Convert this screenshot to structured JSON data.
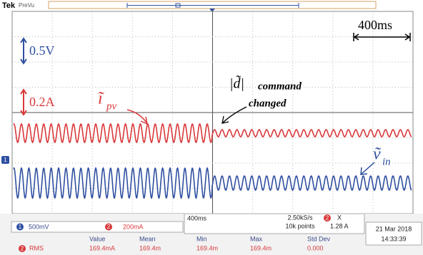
{
  "header": {
    "brand": "Tek",
    "mode": "PreVu"
  },
  "annotations": {
    "time_scale": "400ms",
    "voltage_scale": "0.5V",
    "current_scale": "0.2A",
    "ipv_symbol": "ĩ",
    "ipv_sub": "pv",
    "vin_symbol": "ṽ",
    "vin_sub": "in",
    "duty_symbol": "|d̃|",
    "command": "command",
    "changed": "changed"
  },
  "channel_marker": "1",
  "status": {
    "ch1": {
      "number": "1",
      "scale": "500mV"
    },
    "ch2": {
      "number": "2",
      "scale": "200mA"
    },
    "timebase": "400ms",
    "sample_rate": "2.50kS/s",
    "record_length": "10k points",
    "trigger": {
      "source": "2",
      "slope": "X",
      "level": "1.28 A"
    },
    "date": "21 Mar 2018",
    "time": "14:33:39"
  },
  "measurements": {
    "headers": [
      "Value",
      "Mean",
      "Min",
      "Max",
      "Std Dev"
    ],
    "rows": [
      {
        "channel": "2",
        "type": "RMS",
        "cells": [
          "169.4mA",
          "169.4m",
          "169.4m",
          "169.4m",
          "0.000"
        ]
      }
    ]
  }
}
